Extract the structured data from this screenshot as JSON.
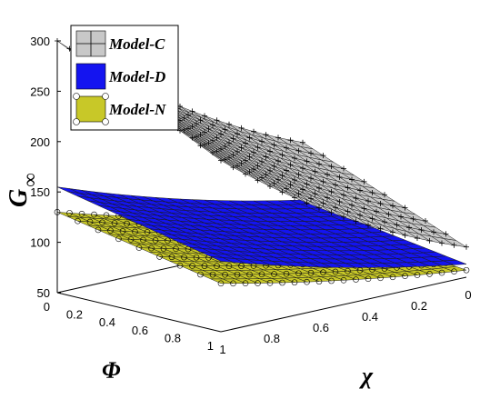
{
  "chart_data": {
    "type": "surface",
    "title": "",
    "xlabel": "Φ",
    "ylabel": "χ",
    "zlabel": "G",
    "zlabel_subscript": "∞",
    "x_ticks": [
      "0",
      "0.2",
      "0.4",
      "0.6",
      "0.8",
      "1"
    ],
    "y_ticks": [
      "1",
      "0.8",
      "0.6",
      "0.4",
      "0.2",
      "0"
    ],
    "z_ticks": [
      "50",
      "100",
      "150",
      "200",
      "250",
      "300"
    ],
    "zlim": [
      50,
      300
    ],
    "grid": false,
    "legend_position": "top-left",
    "series": [
      {
        "name": "Model-C",
        "color": "#c8c8c8",
        "marker": "plus",
        "corners": {
          "phi0_chi0": 145,
          "phi1_chi0": 80,
          "phi0_chi1": 300,
          "phi1_chi1": 220
        },
        "curvature_chi": 0.6
      },
      {
        "name": "Model-D",
        "color": "#1414f0",
        "marker": "none",
        "corners": {
          "phi0_chi0": 88,
          "phi1_chi0": 63,
          "phi0_chi1": 155,
          "phi1_chi1": 120
        },
        "curvature_chi": 0.5
      },
      {
        "name": "Model-N",
        "color": "#c8c828",
        "marker": "circle",
        "corners": {
          "phi0_chi0": 75,
          "phi1_chi0": 57,
          "phi0_chi1": 130,
          "phi1_chi1": 98
        },
        "curvature_chi": 0.5
      }
    ]
  }
}
